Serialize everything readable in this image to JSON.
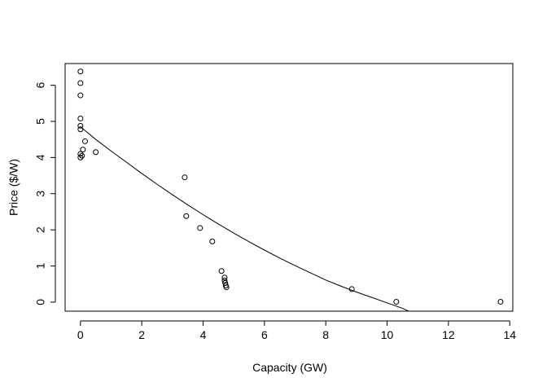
{
  "chart_data": {
    "type": "scatter",
    "title": "",
    "xlabel": "Capacity (GW)",
    "ylabel": "Price ($/W)",
    "xlim": [
      -0.5,
      14.1
    ],
    "ylim": [
      -0.25,
      6.6
    ],
    "x_ticks": [
      0,
      2,
      4,
      6,
      8,
      10,
      12,
      14
    ],
    "y_ticks": [
      0,
      1,
      2,
      3,
      4,
      5,
      6
    ],
    "x_tick_labels": [
      "0",
      "2",
      "4",
      "6",
      "8",
      "10",
      "12",
      "14"
    ],
    "y_tick_labels": [
      "0",
      "1",
      "2",
      "3",
      "4",
      "5",
      "6"
    ],
    "grid": false,
    "legend": "none",
    "series": [
      {
        "type": "scatter",
        "points": [
          {
            "x": 0.0,
            "y": 6.38
          },
          {
            "x": 0.0,
            "y": 6.06
          },
          {
            "x": 0.0,
            "y": 5.72
          },
          {
            "x": 0.0,
            "y": 5.08
          },
          {
            "x": 0.0,
            "y": 4.88
          },
          {
            "x": 0.0,
            "y": 4.78
          },
          {
            "x": 0.0,
            "y": 4.1
          },
          {
            "x": 0.0,
            "y": 4.0
          },
          {
            "x": 0.05,
            "y": 4.05
          },
          {
            "x": 0.08,
            "y": 4.22
          },
          {
            "x": 0.15,
            "y": 4.45
          },
          {
            "x": 0.5,
            "y": 4.15
          },
          {
            "x": 3.4,
            "y": 3.45
          },
          {
            "x": 3.45,
            "y": 2.38
          },
          {
            "x": 3.9,
            "y": 2.05
          },
          {
            "x": 4.3,
            "y": 1.68
          },
          {
            "x": 4.6,
            "y": 0.86
          },
          {
            "x": 4.7,
            "y": 0.68
          },
          {
            "x": 4.7,
            "y": 0.6
          },
          {
            "x": 4.72,
            "y": 0.53
          },
          {
            "x": 4.74,
            "y": 0.46
          },
          {
            "x": 4.76,
            "y": 0.41
          },
          {
            "x": 8.85,
            "y": 0.36
          },
          {
            "x": 10.3,
            "y": 0.01
          },
          {
            "x": 13.7,
            "y": 0.01
          }
        ]
      },
      {
        "type": "line",
        "x": [
          0,
          0.5,
          1,
          1.5,
          2,
          2.5,
          3,
          3.5,
          4,
          4.5,
          5,
          5.5,
          6,
          6.5,
          7,
          7.5,
          8,
          8.5,
          9,
          9.5,
          10,
          10.5,
          10.7
        ],
        "y": [
          4.85,
          4.5,
          4.18,
          3.87,
          3.56,
          3.26,
          2.97,
          2.69,
          2.42,
          2.16,
          1.91,
          1.67,
          1.44,
          1.22,
          1.01,
          0.81,
          0.61,
          0.44,
          0.28,
          0.13,
          -0.02,
          -0.17,
          -0.25
        ]
      }
    ]
  }
}
